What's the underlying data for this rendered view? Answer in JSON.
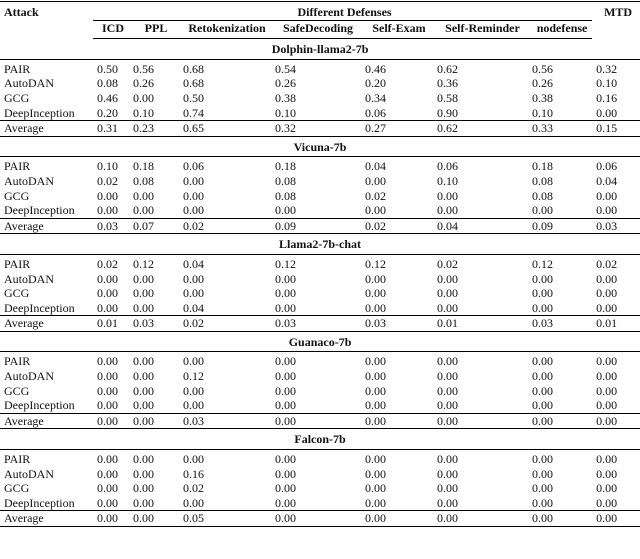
{
  "header": {
    "attack": "Attack",
    "group": "Different Defenses",
    "mtd": "MTD",
    "columns": [
      "ICD",
      "PPL",
      "Retokenization",
      "SafeDecoding",
      "Self-Exam",
      "Self-Reminder",
      "nodefense"
    ]
  },
  "sections": [
    {
      "model": "Dolphin-llama2-7b",
      "rows": [
        {
          "attack": "PAIR",
          "values": [
            "0.50",
            "0.56",
            "0.68",
            "0.54",
            "0.46",
            "0.62",
            "0.56",
            "0.32"
          ]
        },
        {
          "attack": "AutoDAN",
          "values": [
            "0.08",
            "0.26",
            "0.68",
            "0.26",
            "0.20",
            "0.36",
            "0.26",
            "0.10"
          ]
        },
        {
          "attack": "GCG",
          "values": [
            "0.46",
            "0.00",
            "0.50",
            "0.38",
            "0.34",
            "0.58",
            "0.38",
            "0.16"
          ]
        },
        {
          "attack": "DeepInception",
          "values": [
            "0.20",
            "0.10",
            "0.74",
            "0.10",
            "0.06",
            "0.90",
            "0.10",
            "0.00"
          ]
        },
        {
          "attack": "Average",
          "values": [
            "0.31",
            "0.23",
            "0.65",
            "0.32",
            "0.27",
            "0.62",
            "0.33",
            "0.15"
          ]
        }
      ]
    },
    {
      "model": "Vicuna-7b",
      "rows": [
        {
          "attack": "PAIR",
          "values": [
            "0.10",
            "0.18",
            "0.06",
            "0.18",
            "0.04",
            "0.06",
            "0.18",
            "0.06"
          ]
        },
        {
          "attack": "AutoDAN",
          "values": [
            "0.02",
            "0.08",
            "0.00",
            "0.08",
            "0.00",
            "0.10",
            "0.08",
            "0.04"
          ]
        },
        {
          "attack": "GCG",
          "values": [
            "0.00",
            "0.00",
            "0.00",
            "0.08",
            "0.02",
            "0.00",
            "0.08",
            "0.00"
          ]
        },
        {
          "attack": "DeepInception",
          "values": [
            "0.00",
            "0.00",
            "0.00",
            "0.00",
            "0.00",
            "0.00",
            "0.00",
            "0.00"
          ]
        },
        {
          "attack": "Average",
          "values": [
            "0.03",
            "0.07",
            "0.02",
            "0.09",
            "0.02",
            "0.04",
            "0.09",
            "0.03"
          ]
        }
      ]
    },
    {
      "model": "Llama2-7b-chat",
      "rows": [
        {
          "attack": "PAIR",
          "values": [
            "0.02",
            "0.12",
            "0.04",
            "0.12",
            "0.12",
            "0.02",
            "0.12",
            "0.02"
          ]
        },
        {
          "attack": "AutoDAN",
          "values": [
            "0.00",
            "0.00",
            "0.00",
            "0.00",
            "0.00",
            "0.00",
            "0.00",
            "0.00"
          ]
        },
        {
          "attack": "GCG",
          "values": [
            "0.00",
            "0.00",
            "0.00",
            "0.00",
            "0.00",
            "0.00",
            "0.00",
            "0.00"
          ]
        },
        {
          "attack": "DeepInception",
          "values": [
            "0.00",
            "0.00",
            "0.04",
            "0.00",
            "0.00",
            "0.00",
            "0.00",
            "0.00"
          ]
        },
        {
          "attack": "Average",
          "values": [
            "0.01",
            "0.03",
            "0.02",
            "0.03",
            "0.03",
            "0.01",
            "0.03",
            "0.01"
          ]
        }
      ]
    },
    {
      "model": "Guanaco-7b",
      "rows": [
        {
          "attack": "PAIR",
          "values": [
            "0.00",
            "0.00",
            "0.00",
            "0.00",
            "0.00",
            "0.00",
            "0.00",
            "0.00"
          ]
        },
        {
          "attack": "AutoDAN",
          "values": [
            "0.00",
            "0.00",
            "0.12",
            "0.00",
            "0.00",
            "0.00",
            "0.00",
            "0.00"
          ]
        },
        {
          "attack": "GCG",
          "values": [
            "0.00",
            "0.00",
            "0.00",
            "0.00",
            "0.00",
            "0.00",
            "0.00",
            "0.00"
          ]
        },
        {
          "attack": "DeepInception",
          "values": [
            "0.00",
            "0.00",
            "0.00",
            "0.00",
            "0.00",
            "0.00",
            "0.00",
            "0.00"
          ]
        },
        {
          "attack": "Average",
          "values": [
            "0.00",
            "0.00",
            "0.03",
            "0.00",
            "0.00",
            "0.00",
            "0.00",
            "0.00"
          ]
        }
      ]
    },
    {
      "model": "Falcon-7b",
      "rows": [
        {
          "attack": "PAIR",
          "values": [
            "0.00",
            "0.00",
            "0.00",
            "0.00",
            "0.00",
            "0.00",
            "0.00",
            "0.00"
          ]
        },
        {
          "attack": "AutoDAN",
          "values": [
            "0.00",
            "0.00",
            "0.16",
            "0.00",
            "0.00",
            "0.00",
            "0.00",
            "0.00"
          ]
        },
        {
          "attack": "GCG",
          "values": [
            "0.00",
            "0.00",
            "0.02",
            "0.00",
            "0.00",
            "0.00",
            "0.00",
            "0.00"
          ]
        },
        {
          "attack": "DeepInception",
          "values": [
            "0.00",
            "0.00",
            "0.00",
            "0.00",
            "0.00",
            "0.00",
            "0.00",
            "0.00"
          ]
        },
        {
          "attack": "Average",
          "values": [
            "0.00",
            "0.00",
            "0.05",
            "0.00",
            "0.00",
            "0.00",
            "0.00",
            "0.00"
          ]
        }
      ]
    }
  ]
}
